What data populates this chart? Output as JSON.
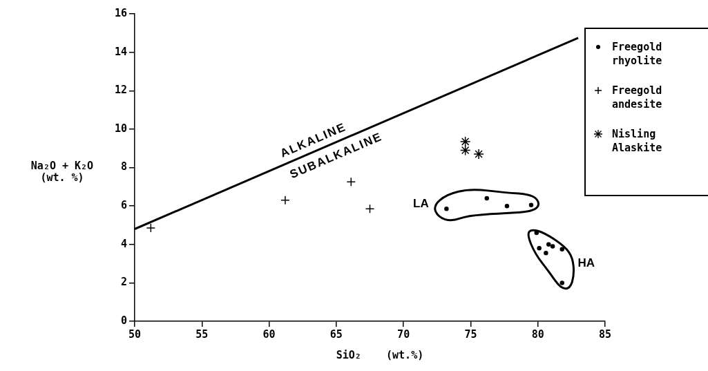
{
  "chart_data": {
    "type": "scatter",
    "xlabel": "SiO₂    (wt.%)",
    "ylabel": "Na₂O + K₂O\n(wt. %)",
    "xlim": [
      50,
      85
    ],
    "xticks": [
      50,
      55,
      60,
      65,
      70,
      75,
      80,
      85
    ],
    "ylim": [
      0,
      16
    ],
    "yticks": [
      0,
      2,
      4,
      6,
      8,
      10,
      12,
      14,
      16
    ],
    "grid": false,
    "legend": "top right",
    "series": [
      {
        "name": "Freegold rhyolite",
        "color": "#000000",
        "marker": "circle",
        "x": [
          73.2,
          76.2,
          77.7,
          79.5,
          79.9,
          80.1,
          80.6,
          80.8,
          81.1,
          81.8,
          81.8
        ],
        "values": [
          5.85,
          6.4,
          6.0,
          6.05,
          4.6,
          3.8,
          3.55,
          4.0,
          3.9,
          3.75,
          2.0
        ]
      },
      {
        "name": "Freegold andesite",
        "color": "#000000",
        "marker": "cross",
        "x": [
          51.2,
          61.2,
          66.1,
          67.5
        ],
        "values": [
          4.85,
          6.3,
          7.25,
          5.85
        ]
      },
      {
        "name": "Nisling Alaskite",
        "color": "#000000",
        "x": [
          74.6,
          74.6,
          75.6
        ],
        "values": [
          9.35,
          8.9,
          8.7
        ]
      },
      {
        "type": "line",
        "color": "#000000",
        "marker": "none",
        "x": [
          50,
          83
        ],
        "values": [
          4.8,
          14.75
        ]
      }
    ],
    "annotations": [
      "ALKALINE",
      "SUBALKALINE",
      "LA",
      "HA"
    ]
  }
}
